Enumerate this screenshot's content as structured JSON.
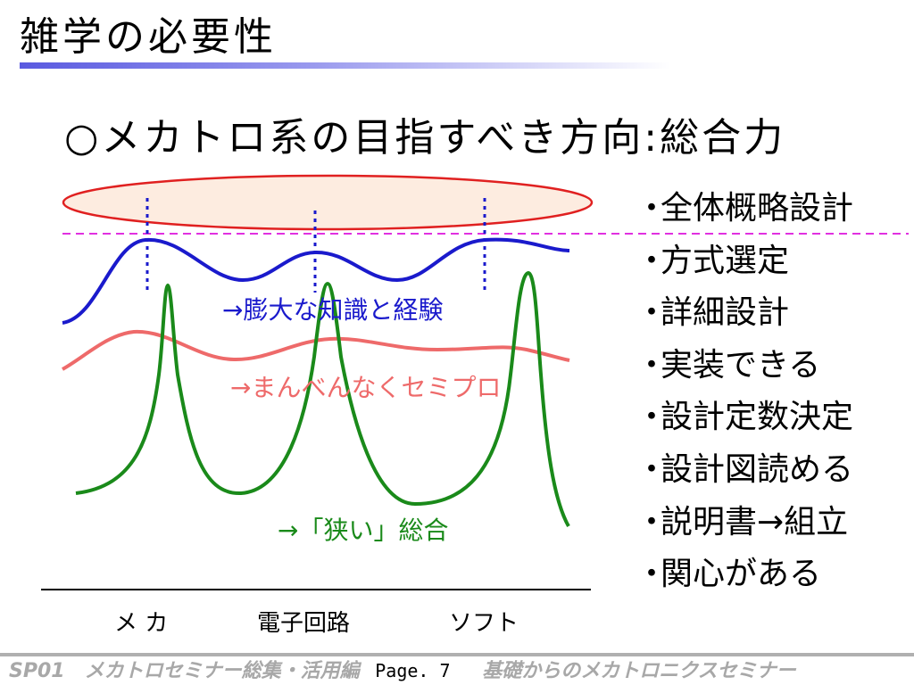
{
  "header": {
    "title": "雑学の必要性"
  },
  "subtitle": "○メカトロ系の目指すべき方向:総合力",
  "diagram": {
    "labels": {
      "blue": "→膨大な知識と経験",
      "pink": "→まんべんなくセミプロ",
      "green": "→「狭い」総合"
    },
    "axis": [
      "メ カ",
      "電子回路",
      "ソフト"
    ],
    "colors": {
      "blue": "#1a1acc",
      "pink": "#ee6a6a",
      "green": "#1a8a1a",
      "ellipse_stroke": "#e02020",
      "ellipse_fill": "#fdece0",
      "dashed_line": "#e030e0",
      "dotted_line": "#1a1acc"
    }
  },
  "right_list": {
    "bullet": "・",
    "items": [
      "全体概略設計",
      "方式選定",
      "詳細設計",
      "実装できる",
      "設計定数決定",
      "設計図読める",
      "説明書→組立",
      "関心がある"
    ]
  },
  "footer": {
    "left": "SP01　メカトロセミナー総集・活用編",
    "page": "Page. 7",
    "right": "基礎からのメカトロニクスセミナー"
  }
}
